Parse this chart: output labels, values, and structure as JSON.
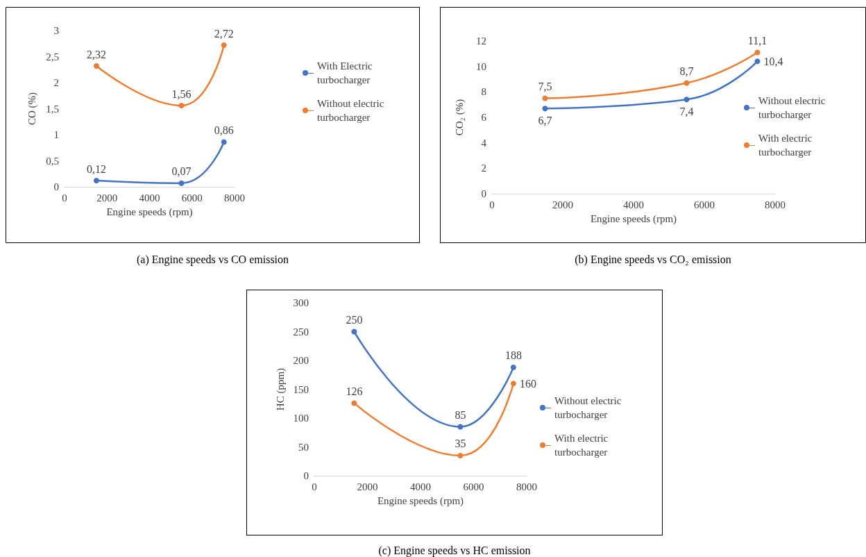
{
  "chart_data": [
    {
      "type": "line",
      "title": "(a) Engine speeds vs CO emission",
      "xlabel": "Engine speeds (rpm)",
      "ylabel": "CO (%)",
      "x": [
        1500,
        5500,
        7500
      ],
      "series": [
        {
          "name": "With Electric turbocharger",
          "color": "#4472c4",
          "values": [
            0.12,
            0.07,
            0.86
          ],
          "value_labels": [
            "0,12",
            "0,07",
            "0,86"
          ]
        },
        {
          "name": "Without electric turbocharger",
          "color": "#ed7d31",
          "values": [
            2.32,
            1.56,
            2.72
          ],
          "value_labels": [
            "2,32",
            "1,56",
            "2,72"
          ]
        }
      ],
      "xlim": [
        0,
        8000
      ],
      "xticks": [
        0,
        2000,
        4000,
        6000,
        8000
      ],
      "ylim": [
        0,
        3
      ],
      "yticks": [
        0,
        {
          "value": 0.5,
          "label": "0,5"
        },
        1,
        {
          "value": 1.5,
          "label": "1,5"
        },
        2,
        {
          "value": 2.5,
          "label": "2,5"
        },
        3
      ],
      "grid": false,
      "legend": "right",
      "marker": "circle",
      "line_style": "solid"
    },
    {
      "type": "line",
      "title": "(b) Engine speeds vs CO₂ emission",
      "xlabel": "Engine speeds (rpm)",
      "ylabel": "CO₂ (%)",
      "x": [
        1500,
        5500,
        7500
      ],
      "series": [
        {
          "name": "Without electric turbocharger",
          "color": "#4472c4",
          "values": [
            6.7,
            7.4,
            10.4
          ],
          "value_labels": [
            "6,7",
            "7,4",
            "10,4"
          ]
        },
        {
          "name": "With electric turbocharger",
          "color": "#ed7d31",
          "values": [
            7.5,
            8.7,
            11.1
          ],
          "value_labels": [
            "7,5",
            "8,7",
            "11,1"
          ]
        }
      ],
      "xlim": [
        0,
        8000
      ],
      "xticks": [
        0,
        2000,
        4000,
        6000,
        8000
      ],
      "ylim": [
        0,
        12
      ],
      "yticks": [
        0,
        2,
        4,
        6,
        8,
        10,
        12
      ],
      "grid": false,
      "legend": "right",
      "marker": "circle",
      "line_style": "solid"
    },
    {
      "type": "line",
      "title": "(c) Engine speeds vs HC emission",
      "xlabel": "Engine speeds (rpm)",
      "ylabel": "HC (ppm)",
      "x": [
        1500,
        5500,
        7500
      ],
      "series": [
        {
          "name": "Without electric turbocharger",
          "color": "#4472c4",
          "values": [
            250,
            85,
            188
          ]
        },
        {
          "name": "With electric turbocharger",
          "color": "#ed7d31",
          "values": [
            126,
            35,
            160
          ]
        }
      ],
      "xlim": [
        0,
        8000
      ],
      "xticks": [
        0,
        2000,
        4000,
        6000,
        8000
      ],
      "ylim": [
        0,
        300
      ],
      "yticks": [
        0,
        50,
        100,
        150,
        200,
        250,
        300
      ],
      "grid": false,
      "legend": "right",
      "marker": "circle",
      "line_style": "solid",
      "data_labels": true
    }
  ]
}
